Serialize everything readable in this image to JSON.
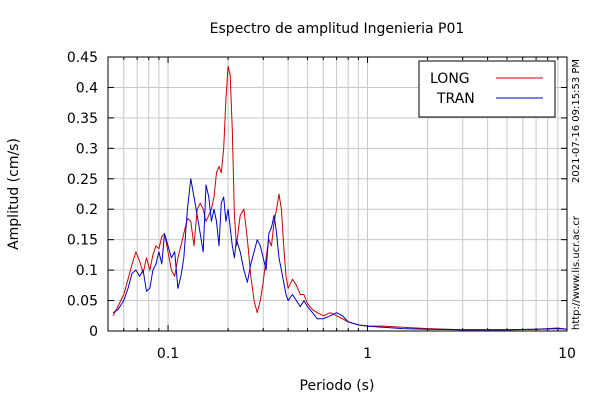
{
  "chart_data": {
    "type": "line",
    "title": "Espectro de amplitud Ingenieria P01",
    "xlabel": "Periodo (s)",
    "ylabel": "Amplitud (cm/s)",
    "x_scale": "log",
    "xlim": [
      0.05,
      10
    ],
    "ylim": [
      0,
      0.45
    ],
    "x_tick_labels": [
      "0.1",
      "1",
      "10"
    ],
    "y_tick_labels": [
      "0",
      "0.05",
      "0.1",
      "0.15",
      "0.2",
      "0.25",
      "0.3",
      "0.35",
      "0.4",
      "0.45"
    ],
    "grid": true,
    "legend_position": "top-right",
    "side_annotations": [
      "http://www.lis.ucr.ac.cr",
      "2021-07-16 09:15:53 PM"
    ],
    "series": [
      {
        "name": "LONG",
        "color": "#cc0000",
        "x": [
          0.053,
          0.056,
          0.06,
          0.063,
          0.066,
          0.069,
          0.072,
          0.075,
          0.078,
          0.081,
          0.084,
          0.087,
          0.09,
          0.093,
          0.096,
          0.1,
          0.104,
          0.108,
          0.112,
          0.116,
          0.12,
          0.125,
          0.13,
          0.135,
          0.14,
          0.145,
          0.15,
          0.155,
          0.16,
          0.165,
          0.17,
          0.175,
          0.18,
          0.185,
          0.19,
          0.195,
          0.2,
          0.205,
          0.21,
          0.215,
          0.22,
          0.23,
          0.24,
          0.25,
          0.26,
          0.27,
          0.28,
          0.29,
          0.3,
          0.31,
          0.32,
          0.33,
          0.34,
          0.35,
          0.36,
          0.37,
          0.38,
          0.39,
          0.4,
          0.42,
          0.44,
          0.46,
          0.48,
          0.5,
          0.53,
          0.56,
          0.6,
          0.65,
          0.7,
          0.75,
          0.8,
          0.9,
          1.0,
          1.2,
          1.5,
          2.0,
          3.0,
          4.0,
          5.0,
          7.0,
          9.0,
          10.0
        ],
        "y": [
          0.025,
          0.04,
          0.06,
          0.085,
          0.11,
          0.13,
          0.115,
          0.095,
          0.12,
          0.1,
          0.125,
          0.14,
          0.135,
          0.155,
          0.16,
          0.13,
          0.1,
          0.09,
          0.12,
          0.14,
          0.16,
          0.185,
          0.18,
          0.14,
          0.2,
          0.21,
          0.2,
          0.18,
          0.19,
          0.2,
          0.22,
          0.26,
          0.27,
          0.26,
          0.3,
          0.38,
          0.435,
          0.42,
          0.33,
          0.19,
          0.14,
          0.19,
          0.2,
          0.15,
          0.09,
          0.05,
          0.03,
          0.05,
          0.08,
          0.12,
          0.15,
          0.14,
          0.18,
          0.2,
          0.225,
          0.2,
          0.14,
          0.09,
          0.07,
          0.085,
          0.075,
          0.06,
          0.06,
          0.045,
          0.035,
          0.03,
          0.025,
          0.03,
          0.025,
          0.02,
          0.015,
          0.01,
          0.008,
          0.008,
          0.006,
          0.004,
          0.002,
          0.002,
          0.002,
          0.003,
          0.005,
          0.003
        ]
      },
      {
        "name": "TRAN",
        "color": "#0000cc",
        "x": [
          0.053,
          0.056,
          0.06,
          0.063,
          0.066,
          0.069,
          0.072,
          0.075,
          0.078,
          0.081,
          0.084,
          0.087,
          0.09,
          0.093,
          0.096,
          0.1,
          0.104,
          0.108,
          0.112,
          0.116,
          0.12,
          0.125,
          0.13,
          0.135,
          0.14,
          0.145,
          0.15,
          0.155,
          0.16,
          0.165,
          0.17,
          0.175,
          0.18,
          0.185,
          0.19,
          0.195,
          0.2,
          0.205,
          0.21,
          0.215,
          0.22,
          0.23,
          0.24,
          0.25,
          0.26,
          0.27,
          0.28,
          0.29,
          0.3,
          0.31,
          0.32,
          0.33,
          0.34,
          0.35,
          0.36,
          0.37,
          0.38,
          0.39,
          0.4,
          0.42,
          0.44,
          0.46,
          0.48,
          0.5,
          0.53,
          0.56,
          0.6,
          0.65,
          0.7,
          0.75,
          0.8,
          0.9,
          1.0,
          1.2,
          1.5,
          2.0,
          3.0,
          4.0,
          5.0,
          7.0,
          9.0,
          10.0
        ],
        "y": [
          0.03,
          0.035,
          0.05,
          0.07,
          0.095,
          0.1,
          0.09,
          0.1,
          0.065,
          0.07,
          0.1,
          0.11,
          0.13,
          0.11,
          0.16,
          0.14,
          0.12,
          0.13,
          0.07,
          0.09,
          0.12,
          0.2,
          0.25,
          0.22,
          0.19,
          0.16,
          0.13,
          0.24,
          0.22,
          0.18,
          0.2,
          0.18,
          0.14,
          0.21,
          0.22,
          0.18,
          0.2,
          0.17,
          0.14,
          0.12,
          0.15,
          0.13,
          0.1,
          0.08,
          0.11,
          0.13,
          0.15,
          0.14,
          0.12,
          0.1,
          0.16,
          0.17,
          0.19,
          0.16,
          0.12,
          0.1,
          0.08,
          0.06,
          0.05,
          0.06,
          0.05,
          0.04,
          0.05,
          0.04,
          0.03,
          0.02,
          0.02,
          0.025,
          0.03,
          0.025,
          0.015,
          0.01,
          0.008,
          0.006,
          0.004,
          0.003,
          0.002,
          0.002,
          0.002,
          0.003,
          0.004,
          0.003
        ]
      }
    ]
  }
}
